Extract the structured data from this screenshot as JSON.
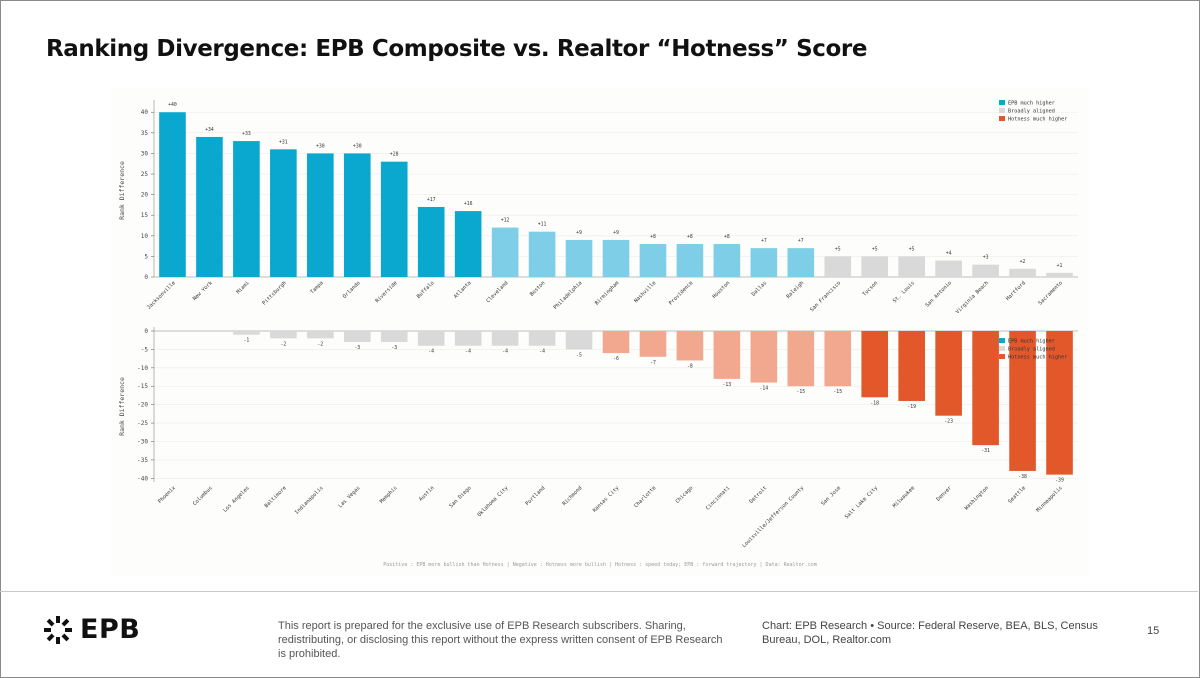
{
  "slide": {
    "title": "Ranking Divergence: EPB Composite vs. Realtor “Hotness” Score",
    "logo_text": "EPB",
    "disclaimer": "This report is prepared for the exclusive use of EPB Research subscribers. Sharing, redistributing, or disclosing this report without the express written consent of EPB Research is prohibited.",
    "source_chart": "Chart: EPB Research",
    "source_separator": "•",
    "source_text": "Source: Federal Reserve, BEA, BLS, Census Bureau, DOL, Realtor.com",
    "page_number": "15"
  },
  "colors": {
    "epb_much_higher": "#0aa8cf",
    "epb_higher": "#7dcee6",
    "aligned": "#d9d9d9",
    "hotness_higher": "#f2a88f",
    "hotness_much_higher": "#e2582b"
  },
  "chart_footnote": "Positive : EPB more bullish than Hotness  |  Negative : Hotness more bullish  |  Hotness : speed today; EPB : forward trajectory  |  Data: Realtor.com",
  "chart_data": [
    {
      "type": "bar",
      "ylabel": "Rank Difference",
      "ylim": [
        0,
        42
      ],
      "yticks": [
        0,
        5,
        10,
        15,
        20,
        25,
        30,
        35,
        40
      ],
      "legend": {
        "position": "top-right",
        "entries": [
          {
            "label": "EPB much higher",
            "color": "#0aa8cf"
          },
          {
            "label": "Broadly aligned",
            "color": "#d9d9d9"
          },
          {
            "label": "Hotness much higher",
            "color": "#e2582b"
          }
        ]
      },
      "categories": [
        "Jacksonville",
        "New York",
        "Miami",
        "Pittsburgh",
        "Tampa",
        "Orlando",
        "Riverside",
        "Buffalo",
        "Atlanta",
        "Cleveland",
        "Boston",
        "Philadelphia",
        "Birmingham",
        "Nashville",
        "Providence",
        "Houston",
        "Dallas",
        "Raleigh",
        "San Francisco",
        "Tucson",
        "St. Louis",
        "San Antonio",
        "Virginia Beach",
        "Hartford",
        "Sacramento"
      ],
      "values": [
        40,
        34,
        33,
        31,
        30,
        30,
        28,
        17,
        16,
        12,
        11,
        9,
        9,
        8,
        8,
        8,
        7,
        7,
        5,
        5,
        5,
        4,
        3,
        2,
        1
      ],
      "labels": [
        "+40",
        "+34",
        "+33",
        "+31",
        "+30",
        "+30",
        "+28",
        "+17",
        "+16",
        "+12",
        "+11",
        "+9",
        "+9",
        "+8",
        "+8",
        "+8",
        "+7",
        "+7",
        "+5",
        "+5",
        "+5",
        "+4",
        "+3",
        "+2",
        "+1"
      ]
    },
    {
      "type": "bar",
      "ylabel": "Rank Difference",
      "ylim": [
        -41,
        0
      ],
      "yticks": [
        0,
        -5,
        -10,
        -15,
        -20,
        -25,
        -30,
        -35,
        -40
      ],
      "legend": {
        "position": "top-right",
        "entries": [
          {
            "label": "EPB much higher",
            "color": "#0aa8cf"
          },
          {
            "label": "Broadly aligned",
            "color": "#d9d9d9"
          },
          {
            "label": "Hotness much higher",
            "color": "#e2582b"
          }
        ]
      },
      "categories": [
        "Phoenix",
        "Columbus",
        "Los Angeles",
        "Baltimore",
        "Indianapolis",
        "Las Vegas",
        "Memphis",
        "Austin",
        "San Diego",
        "Oklahoma City",
        "Portland",
        "Richmond",
        "Kansas City",
        "Charlotte",
        "Chicago",
        "Cincinnati",
        "Detroit",
        "Louisville/Jefferson County",
        "San Jose",
        "Salt Lake City",
        "Milwaukee",
        "Denver",
        "Washington",
        "Seattle",
        "Minneapolis"
      ],
      "values": [
        0,
        0,
        -1,
        -2,
        -2,
        -3,
        -3,
        -4,
        -4,
        -4,
        -4,
        -5,
        -6,
        -7,
        -8,
        -13,
        -14,
        -15,
        -15,
        -18,
        -19,
        -23,
        -31,
        -38,
        -39
      ],
      "labels": [
        "",
        "",
        "-1",
        "-2",
        "-2",
        "-3",
        "-3",
        "-4",
        "-4",
        "-4",
        "-4",
        "-5",
        "-6",
        "-7",
        "-8",
        "-13",
        "-14",
        "-15",
        "-15",
        "-18",
        "-19",
        "-23",
        "-31",
        "-38",
        "-39"
      ]
    }
  ]
}
